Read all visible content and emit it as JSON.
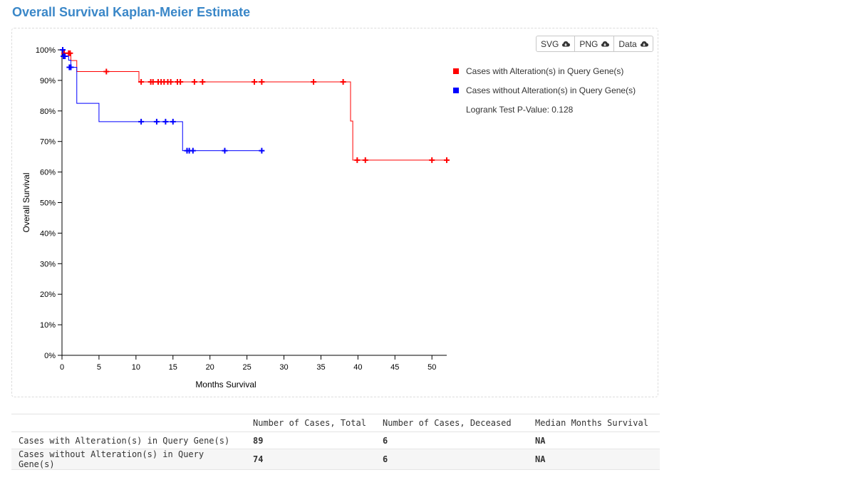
{
  "page": {
    "title": "Overall Survival Kaplan-Meier Estimate"
  },
  "toolbar": {
    "svg_label": "SVG",
    "png_label": "PNG",
    "data_label": "Data"
  },
  "legend": {
    "altered_label": "Cases with Alteration(s) in Query Gene(s)",
    "unaltered_label": "Cases without Alteration(s) in Query Gene(s)",
    "pvalue_text": "Logrank Test P-Value: 0.128"
  },
  "colors": {
    "altered": "#ff0000",
    "unaltered": "#0000ff",
    "title": "#3a87c8"
  },
  "chart_data": {
    "type": "line",
    "subtype": "kaplan-meier-step",
    "title": "",
    "xlabel": "Months Survival",
    "ylabel": "Overall Survival",
    "xlim": [
      0,
      52
    ],
    "ylim": [
      0,
      100
    ],
    "x_ticks": [
      0,
      5,
      10,
      15,
      20,
      25,
      30,
      35,
      40,
      45,
      50
    ],
    "y_ticks": [
      {
        "value": 0,
        "label": "0%"
      },
      {
        "value": 10,
        "label": "10%"
      },
      {
        "value": 20,
        "label": "20%"
      },
      {
        "value": 30,
        "label": "30%"
      },
      {
        "value": 40,
        "label": "40%"
      },
      {
        "value": 50,
        "label": "50%"
      },
      {
        "value": 60,
        "label": "60%"
      },
      {
        "value": 70,
        "label": "70%"
      },
      {
        "value": 80,
        "label": "80%"
      },
      {
        "value": 90,
        "label": "90%"
      },
      {
        "value": 100,
        "label": "100%"
      }
    ],
    "grid": false,
    "legend_position": "right",
    "series": [
      {
        "name": "Cases with Alteration(s) in Query Gene(s)",
        "color": "#ff0000",
        "steps": [
          {
            "x": 0,
            "y": 100
          },
          {
            "x": 0.3,
            "y": 98.9
          },
          {
            "x": 1.2,
            "y": 96.5
          },
          {
            "x": 2.0,
            "y": 92.9
          },
          {
            "x": 10.4,
            "y": 89.5
          },
          {
            "x": 39.0,
            "y": 76.7
          },
          {
            "x": 39.3,
            "y": 63.9
          },
          {
            "x": 52.0,
            "y": 63.9
          }
        ],
        "censored": [
          {
            "x": 0.3,
            "y": 98.9
          },
          {
            "x": 0.9,
            "y": 98.9
          },
          {
            "x": 1.1,
            "y": 98.9
          },
          {
            "x": 6.0,
            "y": 92.9
          },
          {
            "x": 10.7,
            "y": 89.5
          },
          {
            "x": 12.0,
            "y": 89.5
          },
          {
            "x": 12.3,
            "y": 89.5
          },
          {
            "x": 13.0,
            "y": 89.5
          },
          {
            "x": 13.4,
            "y": 89.5
          },
          {
            "x": 13.8,
            "y": 89.5
          },
          {
            "x": 14.3,
            "y": 89.5
          },
          {
            "x": 14.7,
            "y": 89.5
          },
          {
            "x": 15.6,
            "y": 89.5
          },
          {
            "x": 16.0,
            "y": 89.5
          },
          {
            "x": 17.9,
            "y": 89.5
          },
          {
            "x": 19.0,
            "y": 89.5
          },
          {
            "x": 26.0,
            "y": 89.5
          },
          {
            "x": 27.0,
            "y": 89.5
          },
          {
            "x": 34.0,
            "y": 89.5
          },
          {
            "x": 38.0,
            "y": 89.5
          },
          {
            "x": 39.9,
            "y": 63.9
          },
          {
            "x": 41.0,
            "y": 63.9
          },
          {
            "x": 50.0,
            "y": 63.9
          },
          {
            "x": 52.0,
            "y": 63.9
          }
        ]
      },
      {
        "name": "Cases without Alteration(s) in Query Gene(s)",
        "color": "#0000ff",
        "steps": [
          {
            "x": 0,
            "y": 100
          },
          {
            "x": 0.1,
            "y": 97.9
          },
          {
            "x": 0.9,
            "y": 96.6
          },
          {
            "x": 1.2,
            "y": 94.3
          },
          {
            "x": 2.0,
            "y": 82.5
          },
          {
            "x": 5.0,
            "y": 76.5
          },
          {
            "x": 16.3,
            "y": 67.0
          },
          {
            "x": 27.0,
            "y": 67.0
          }
        ],
        "censored": [
          {
            "x": 0.1,
            "y": 100
          },
          {
            "x": 0.2,
            "y": 97.9
          },
          {
            "x": 0.4,
            "y": 97.9
          },
          {
            "x": 1.0,
            "y": 94.3
          },
          {
            "x": 1.2,
            "y": 94.3
          },
          {
            "x": 10.7,
            "y": 76.5
          },
          {
            "x": 12.8,
            "y": 76.5
          },
          {
            "x": 14.0,
            "y": 76.5
          },
          {
            "x": 15.0,
            "y": 76.5
          },
          {
            "x": 16.9,
            "y": 67.0
          },
          {
            "x": 17.2,
            "y": 67.0
          },
          {
            "x": 17.7,
            "y": 67.0
          },
          {
            "x": 22.0,
            "y": 67.0
          },
          {
            "x": 27.0,
            "y": 67.0
          }
        ]
      }
    ]
  },
  "table": {
    "headers": [
      "",
      "Number of Cases, Total",
      "Number of Cases, Deceased",
      "Median Months Survival"
    ],
    "rows": [
      {
        "label": "Cases with Alteration(s) in Query Gene(s)",
        "total": "89",
        "deceased": "6",
        "median": "NA"
      },
      {
        "label": "Cases without Alteration(s) in Query Gene(s)",
        "total": "74",
        "deceased": "6",
        "median": "NA"
      }
    ]
  }
}
